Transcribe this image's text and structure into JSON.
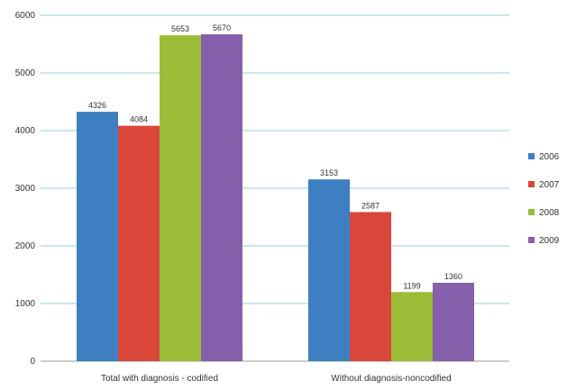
{
  "chart_data": {
    "type": "bar",
    "categories": [
      "Total with diagnosis -  codified",
      "Without diagnosis-noncodified"
    ],
    "series": [
      {
        "name": "2006",
        "values": [
          4326,
          3153
        ],
        "color": "#3d7fc1"
      },
      {
        "name": "2007",
        "values": [
          4084,
          2587
        ],
        "color": "#d9473b"
      },
      {
        "name": "2008",
        "values": [
          5653,
          1199
        ],
        "color": "#9cbb37"
      },
      {
        "name": "2009",
        "values": [
          5670,
          1360
        ],
        "color": "#8360a9"
      }
    ],
    "data_labels": [
      [
        "4326",
        "4084",
        "5653",
        "5670"
      ],
      [
        "3153",
        "2587",
        "1199",
        "1360"
      ]
    ],
    "yticks": [
      "0",
      "1000",
      "2000",
      "3000",
      "4000",
      "5000",
      "6000"
    ],
    "ylim": [
      0,
      6000
    ],
    "grid": true,
    "grid_color": "#b7dde8",
    "legend": "right",
    "title": "",
    "xlabel": "",
    "ylabel": ""
  }
}
